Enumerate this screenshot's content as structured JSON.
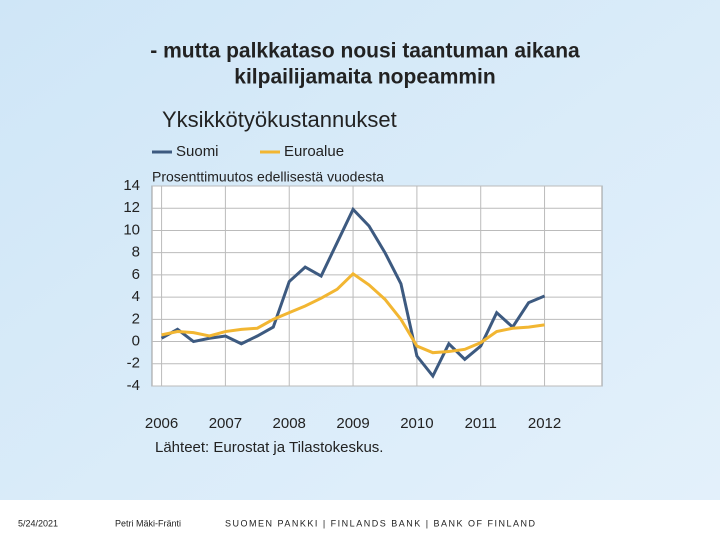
{
  "slide": {
    "title_lines": [
      "- mutta palkkataso nousi taantuman aikana",
      "kilpailijamaita nopeammin"
    ],
    "footer": {
      "date": "5/24/2021",
      "author": "Petri Mäki-Fränti",
      "organization": "SUOMEN PANKKI | FINLANDS BANK | BANK OF FINLAND"
    }
  },
  "chart_data": {
    "type": "line",
    "title": "Yksikkötyökustannukset",
    "subtitle": "Prosenttimuutos edellisestä vuodesta",
    "source": "Lähteet: Eurostat ja Tilastokeskus.",
    "x": [
      2006,
      2006.25,
      2006.5,
      2006.75,
      2007,
      2007.25,
      2007.5,
      2007.75,
      2008,
      2008.25,
      2008.5,
      2008.75,
      2009,
      2009.25,
      2009.5,
      2009.75,
      2010,
      2010.25,
      2010.5,
      2010.75,
      2011,
      2011.25,
      2011.5,
      2011.75,
      2012
    ],
    "series": [
      {
        "name": "Suomi",
        "color": "#3d5a80",
        "values": [
          0.3,
          1.1,
          0,
          0.3,
          0.5,
          -0.2,
          0.5,
          1.3,
          5.4,
          6.7,
          5.9,
          8.9,
          11.9,
          10.4,
          8.0,
          5.2,
          -1.3,
          -3.1,
          -0.2,
          -1.6,
          -0.4,
          2.6,
          1.3,
          3.5,
          4.1
        ]
      },
      {
        "name": "Euroalue",
        "color": "#f2b632",
        "values": [
          0.6,
          0.9,
          0.8,
          0.5,
          0.9,
          1.1,
          1.2,
          2.0,
          2.6,
          3.2,
          3.9,
          4.7,
          6.1,
          5.1,
          3.8,
          2.0,
          -0.4,
          -1.0,
          -0.9,
          -0.7,
          -0.1,
          0.9,
          1.2,
          1.3,
          1.5
        ]
      }
    ],
    "xlim": [
      2005.85,
      2012.9
    ],
    "xticks": [
      2006,
      2007,
      2008,
      2009,
      2010,
      2011,
      2012
    ],
    "ylim": [
      -4,
      14
    ],
    "yticks": [
      -4,
      -2,
      0,
      2,
      4,
      6,
      8,
      10,
      12,
      14
    ],
    "grid": true
  }
}
